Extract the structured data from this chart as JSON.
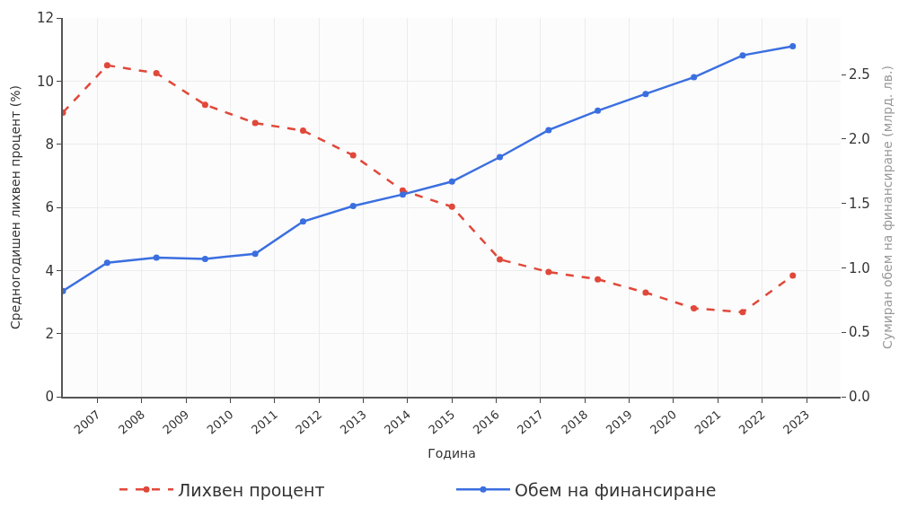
{
  "chart_data": {
    "type": "line",
    "xlabel": "Година",
    "ylabel": "Средногодишен лихвен процент (%)",
    "y2label": "Сумиран обем на финансиране (млрд. лв.)",
    "x": [
      2006.22,
      2007.22,
      2008.33,
      2009.43,
      2010.56,
      2011.64,
      2012.77,
      2013.89,
      2015.0,
      2016.08,
      2017.18,
      2018.29,
      2019.37,
      2020.46,
      2021.56,
      2022.69
    ],
    "series": [
      {
        "name": "Лихвен процент",
        "color": "#e0483a",
        "line_style": "dashed",
        "values": [
          9.0,
          10.5,
          10.25,
          9.25,
          8.67,
          8.43,
          7.65,
          6.53,
          6.02,
          4.35,
          3.95,
          3.72,
          3.3,
          2.8,
          2.68,
          3.84
        ]
      },
      {
        "name": "Обем на финансиране",
        "color": "#3b6fe0",
        "line_style": "solid",
        "axis": "y2",
        "values": [
          0.82,
          1.04,
          1.08,
          1.07,
          1.11,
          1.36,
          1.48,
          1.57,
          1.67,
          1.86,
          2.07,
          2.22,
          2.35,
          2.48,
          2.65,
          2.72
        ]
      }
    ],
    "xlim": [
      2006.22,
      2023.77
    ],
    "xticks": [
      2007,
      2008,
      2009,
      2010,
      2011,
      2012,
      2013,
      2014,
      2015,
      2016,
      2017,
      2018,
      2019,
      2020,
      2021,
      2022,
      2023
    ],
    "ylim": [
      0,
      12
    ],
    "yticks": [
      0,
      2,
      4,
      6,
      8,
      10,
      12
    ],
    "y2lim": [
      0,
      2.94
    ],
    "y2ticks": [
      {
        "value": 0,
        "label": "0.0"
      },
      0.5,
      {
        "value": 1,
        "label": "1.0"
      },
      1.5,
      {
        "value": 2,
        "label": "2.0"
      },
      2.5
    ],
    "grid": true,
    "legend": "bottom",
    "marker": "circle"
  }
}
